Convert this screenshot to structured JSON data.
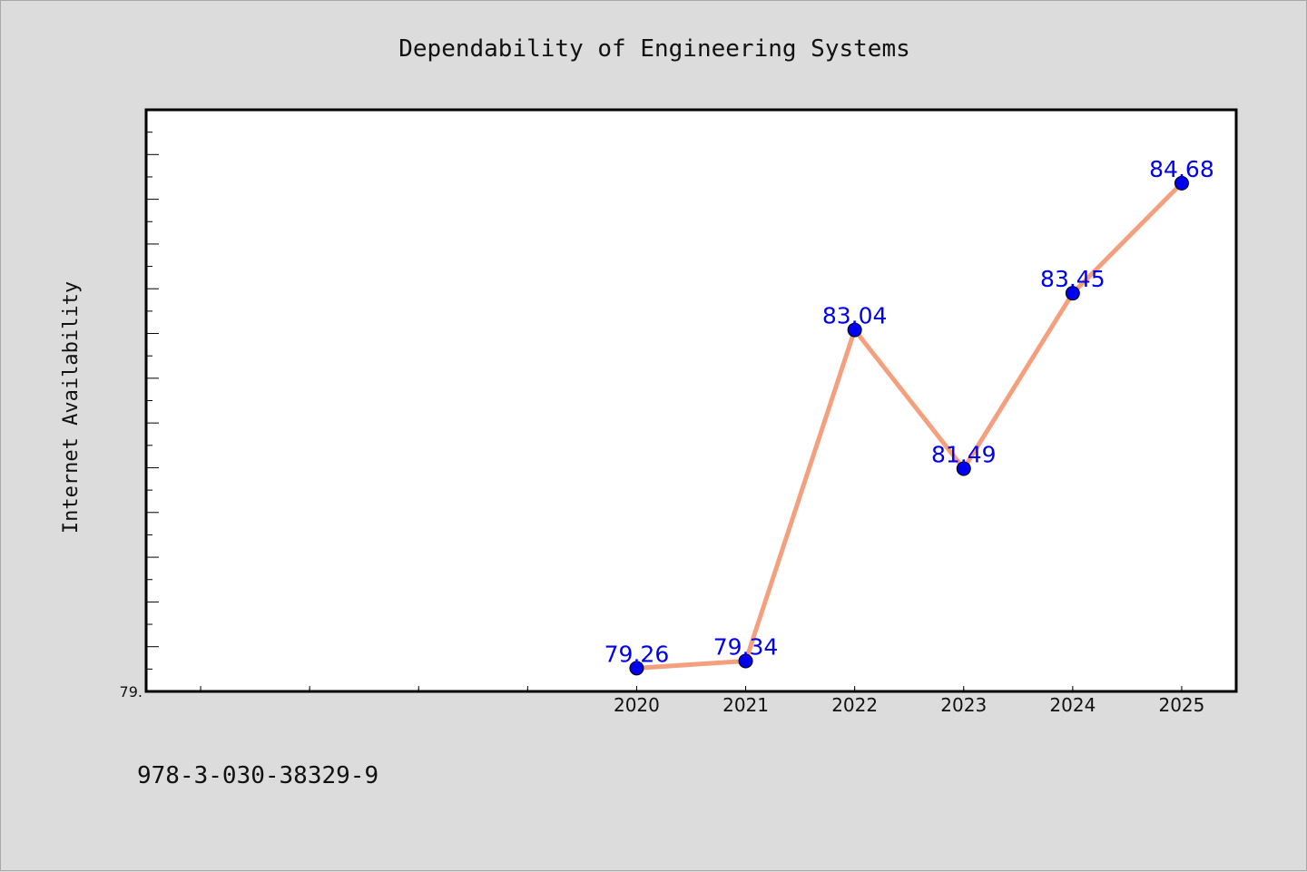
{
  "chart_data": {
    "type": "line",
    "title": "Dependability of Engineering Systems",
    "xlabel": "",
    "ylabel": "Internet Availability",
    "x": [
      "2020",
      "2021",
      "2022",
      "2023",
      "2024",
      "2025"
    ],
    "series": [
      {
        "values": [
          79.26,
          79.34,
          83.04,
          81.49,
          83.45,
          84.68
        ]
      }
    ],
    "data_labels": [
      "79.26",
      "79.34",
      "83.04",
      "81.49",
      "83.45",
      "84.68"
    ],
    "y_tick_labels": [
      "79."
    ],
    "ylim": [
      79.0,
      85.5
    ],
    "x_positions_range": [
      2015.5,
      2025.5
    ],
    "grid": false,
    "line_color": "#f4a07e",
    "marker_color": "#0000ee",
    "label_color": "#0000ee"
  },
  "footer": {
    "isbn": "978-3-030-38329-9"
  }
}
